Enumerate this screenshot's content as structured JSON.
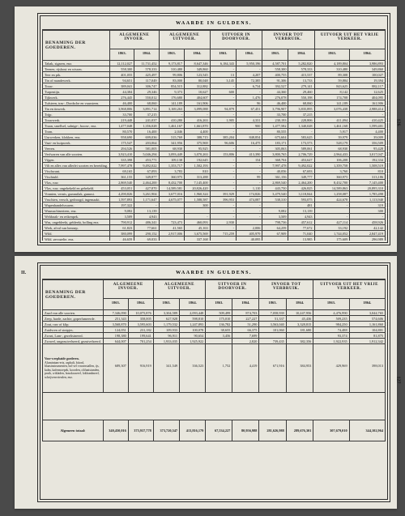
{
  "colors": {
    "page_bg": "#e8e6dd",
    "outer_bg": "#4a4a4a",
    "rule": "#2a2a2a",
    "text": "#1a1a1a"
  },
  "page_numbers": {
    "top_right": "126",
    "bottom_left": "II.",
    "bottom_right": "127"
  },
  "header": {
    "main_title": "WAARDE IN GULDENS.",
    "row_header": "BENAMING DER GOEDEREN.",
    "col_groups": [
      "ALGEMEENE INVOER.",
      "ALGEMEENE UITVOER.",
      "UITVOER IN DOORVOER.",
      "INVOER TOT VERBRUIK.",
      "UITVOER UIT HET VRIJE VERKEER."
    ],
    "years": [
      "1863.",
      "1864.",
      "1863.",
      "1864.",
      "1863.",
      "1864.",
      "1863.",
      "1864.",
      "1863.",
      "1864."
    ]
  },
  "top_table": {
    "rows": [
      {
        "label": "Tabak, sigaren, enz.",
        "v": [
          "12,112,027",
          "11,731,452",
          "9,173,817",
          "8,647,346",
          "6,184,343",
          "5,950,196",
          "4,587,701",
          "5,282,820",
          "4,189,804",
          "3,986,893"
        ]
      },
      {
        "label": "Teenen, rijshout en wissen.",
        "v": [
          "558,300",
          "578,333",
          "310,480",
          "349,860",
          "-",
          "-",
          "558,300",
          "578,333",
          "310,480",
          "349,860"
        ]
      },
      {
        "label": "Teer en pik.",
        "v": [
          "401,055",
          "425,497",
          "99,806",
          "123,545",
          "13",
          "4,207",
          "400,755",
          "415,537",
          "89,308",
          "100,027"
        ]
      },
      {
        "label": "Tin of mandewerk.",
        "v": [
          "94,651",
          "117,049",
          "83,000",
          "80,048",
          "3,145",
          "72,385",
          "91,306",
          "13,733",
          "59,884",
          "19,394"
        ]
      },
      {
        "label": "Touw.",
        "v": [
          "389,041",
          "306,747",
          "854,515",
          "312,882",
          "-",
          "6,734",
          "392,527",
          "279,141",
          "843,625",
          "882,117"
        ]
      },
      {
        "label": "Turpentijn.",
        "v": [
          "44,384",
          "29,346",
          "9,373",
          "10,627",
          "600",
          "-",
          "44,360",
          "29,460",
          "8,142",
          "12,625"
        ]
      },
      {
        "label": "Tijkwerk.",
        "v": [
          "276,445",
          "550,012",
          "176,680",
          "404,607",
          "-",
          "1,476",
          "276,078",
          "550,198",
          "174,708",
          "404,095"
        ]
      },
      {
        "label": "Tufsteen, tras-, Dordsche en vuursteen.",
        "v": [
          "46,400",
          "68,060",
          "141,189",
          "161,906",
          "-",
          "96",
          "46,400",
          "68,060",
          "141,189",
          "161,906"
        ]
      },
      {
        "label": "Tin en tinwerk.",
        "v": [
          "3,968,806",
          "3,891,714",
          "3,169,263",
          "3,099,088",
          "94,879",
          "67,451",
          "3,796,907",
          "3,835,895",
          "3,076,438",
          "2,988,414"
        ]
      },
      {
        "label": "Trijp.",
        "v": [
          "33,700",
          "37,215",
          "-",
          "-",
          "-",
          "-",
          "33,700",
          "37,215",
          "-",
          "-"
        ]
      },
      {
        "label": "Touwwerk.",
        "v": [
          "219,448",
          "241,037",
          "410,280",
          "416,263",
          "1,905",
          "4,331",
          "230,193",
          "228,806",
          "411,094",
          "410,425"
        ]
      },
      {
        "label": "Traan, smellsel, salnige-, boom-, enz.",
        "v": [
          "1,477,048",
          "1,356,028",
          "1,461,167",
          "1,661,870",
          "-",
          "900",
          "1,477,582",
          "1,340,028",
          "1,461,168",
          "1,599,401"
        ]
      },
      {
        "label": "Trom.",
        "v": [
          "80,570",
          "16,400",
          "2,046",
          "4,400",
          "-",
          "-",
          "80,555",
          "-",
          "5,917",
          "4,400"
        ]
      },
      {
        "label": "Uurwerken, klokken, enz.",
        "v": [
          "958,690",
          "699,036",
          "515,769",
          "388,715",
          "385,204",
          "848,854",
          "675,604",
          "583,625",
          "39,979",
          "39,009"
        ]
      },
      {
        "label": "Vaat- en kuipwerk.",
        "v": [
          "175,547",
          "203,064",
          "341,956",
          "375,969",
          "96,606",
          "16,475",
          "183,171",
          "173,573",
          "528,179",
          "356,509"
        ]
      },
      {
        "label": "Veeren.",
        "v": [
          "294,526",
          "581,005",
          "68,930",
          "95,925",
          "-",
          "-",
          "305,063",
          "589,061",
          "68,930",
          "95,428"
        ]
      },
      {
        "label": "Verfwaren van alle soorten.",
        "v": [
          "3,923,410",
          "5,046,294",
          "3,093,449",
          "3,070,263",
          "153,806",
          "413,390",
          "3,800,765",
          "2,706,729",
          "2,964,433",
          "3,017,047"
        ]
      },
      {
        "label": "Vijgen.",
        "v": [
          "335,398",
          "453,771",
          "109,138",
          "192,645",
          "-",
          "154",
          "368,704",
          "453,627",
          "106,208",
          "192,334"
        ]
      },
      {
        "label": "Vilt en alles van allerlei soorten en bereiding.",
        "v": [
          "7,997,478",
          "9,492,022",
          "1,353,717",
          "1,502,193",
          "-",
          "-",
          "7,997,478",
          "9,492,022",
          "1,359,758",
          "1,508,519"
        ]
      },
      {
        "label": "Vischwant.",
        "v": [
          "69,165",
          "67,093",
          "3,783",
          "810",
          "-",
          "-",
          "40,056",
          "67,693",
          "3,760",
          "810"
        ]
      },
      {
        "label": "Vischtuld.",
        "v": [
          "361,155",
          "349,877",
          "360,975",
          "313,288",
          "-",
          "99",
          "361,156",
          "349,777",
          "360,975",
          "313,186"
        ]
      },
      {
        "label": "Vlas, ruw.",
        "v": [
          "2,869,540",
          "2,464,200",
          "8,432,700",
          "7,145,400",
          "-",
          "-",
          "2,869,540",
          "2,464,200",
          "8,432,700",
          "7,145,400"
        ]
      },
      {
        "label": "Vlas, ruw, ongehekeld en gehekeld.",
        "v": [
          "453,051",
          "427,870",
          "14,589,581",
          "20,826,420",
          "-",
          "1,110",
          "443,750",
          "426,825",
          "14,589,863",
          "20,895,310"
        ]
      },
      {
        "label": "Vonnten, vernis, gummilak, gummi.",
        "v": [
          "4,290,826",
          "3,261,904",
          "3,677,016",
          "1,960,324",
          "391,929",
          "174,826",
          "3,479,540",
          "3,118,844",
          "1,258,087",
          "1,785,498"
        ]
      },
      {
        "label": "Vruchten, versch, gedroogd, ingemaakt.",
        "v": [
          "1,597,893",
          "1,171,647",
          "4,675,077",
          "1,588,587",
          "396,953",
          "474,087",
          "538,310",
          "593,075",
          "424,678",
          "1,113,940"
        ]
      },
      {
        "label": "Wapenhandelswaren.",
        "v": [
          "197,322",
          "-",
          "",
          "300",
          "-",
          "-",
          "",
          "481",
          "-",
          "319"
        ]
      },
      {
        "label": "Wasmachinerieen, enz.",
        "v": [
          "9,082",
          "13,139",
          "",
          "",
          "-",
          "-",
          "9,082",
          "13,139",
          "",
          "300"
        ]
      },
      {
        "label": "Weldraak- en reikenpek.",
        "v": [
          "3,509",
          "4,943",
          "",
          "-",
          "-",
          "-",
          "3,509",
          "4,943",
          "-",
          "-"
        ]
      },
      {
        "label": "Was, ongebleekt, gebleekt, bolling enz.",
        "v": [
          "790,912",
          "486,341",
          "723,473",
          "460,093",
          "2,930",
          "",
          "798,736",
          "457,612",
          "427,114",
          "458,926"
        ]
      },
      {
        "label": "Werk, afval van hennep.",
        "v": [
          "61,823",
          "77,661",
          "41,565",
          "45,163",
          "-",
          "2,006",
          "64,259",
          "77,672",
          "33,192",
          "42,142"
        ]
      },
      {
        "label": "Wild.",
        "v": [
          "380,099",
          "290,152",
          "2,917,006",
          "3,675,569",
          "715,259",
          "405,979",
          "67,909",
          "71,040",
          "1,744,052",
          "2,847,419"
        ]
      },
      {
        "label": "Wild, gevogelte, enz.",
        "v": [
          "46,659",
          "69,033",
          "",
          "337,168",
          "",
          "40,095",
          "",
          "13,985",
          "175,609",
          "296,989"
        ]
      },
      {
        "label": "Wol, onbewerkt, ruw, enz.",
        "v": [
          "61,886",
          "7,500,504",
          "",
          "9,718,954",
          "197,106",
          "471",
          "6,788,504",
          "7,169,654",
          "7,697,882",
          "8,969,485"
        ]
      }
    ]
  },
  "bottom_table": {
    "rows1": [
      {
        "label": "Zaad van alle soorten.",
        "v": [
          "7,346,090",
          "10,075,876",
          "3,304,589",
          "2,093,448",
          "509,499",
          "874,703",
          "7,058,939",
          "10,247,956",
          "4,476,990",
          "3,044,765"
        ]
      },
      {
        "label": "Zeep, harde, zachte, goperfumeerde.",
        "v": [
          "251,343",
          "358,005",
          "627,928",
          "598,810",
          "175,010",
          "227,227",
          "51,337",
          "45,436",
          "509,235",
          "574,606"
        ]
      },
      {
        "label": "Zout, ruw of klip.",
        "v": [
          "3,568,870",
          "3,595,603",
          "1,179,532",
          "1,247,893",
          "136,782",
          "51,290",
          "3,563,040",
          "3,328,815",
          "984,250",
          "1,161,860"
        ]
      },
      {
        "label": "Zuidvren of sinipjes.",
        "v": [
          "124,051",
          "231,182",
          "109,933",
          "100,078",
          "38,655",
          "66,375",
          "101,060",
          "181,680",
          "74,488",
          "104,801"
        ]
      },
      {
        "label": "Zwart, Lam-, gezelisineerd.",
        "v": [
          "198,380",
          "199,641",
          "96,911",
          "90,654",
          "3,456",
          "7,699",
          "",
          "",
          "93,374",
          "81,875"
        ]
      },
      {
        "label": "Zwavel, ongezuivelseerd, gezuivelseerd.",
        "v": [
          "644,007",
          "701,254",
          "1,933,035",
          "1,925,922",
          "",
          "2,820",
          "739,435",
          "382,356",
          "1,922,935",
          "1,912,342"
        ]
      }
    ],
    "voorwerpen": {
      "side_label": "Voor-werpbaide goederen.",
      "cell_label": "Aluminium-erts, asphalt, bitord, blaasinstrumenten, bol-sel vossenstallen, ijs, kalm, kafermoepek, koorden, olifantstanden, pruik, wikladen, houskraweel, lokhondmeel, schrijvenvriesden, enz.",
      "v": [
        "689,307",
        "916,919",
        "341,549",
        "336,523",
        "1,752",
        "4,419",
        "671,916",
        "384,953",
        "429,969",
        "398,013"
      ]
    },
    "grand": {
      "label": "Algemeen totaal:",
      "v": [
        "340,450,016",
        "375,937,778",
        "373,720,547",
        "413,816,179",
        "67,534,227",
        "80,956,988",
        "281,626,988",
        "289,676,301",
        "307,679,010",
        "344,102,964"
      ]
    }
  }
}
